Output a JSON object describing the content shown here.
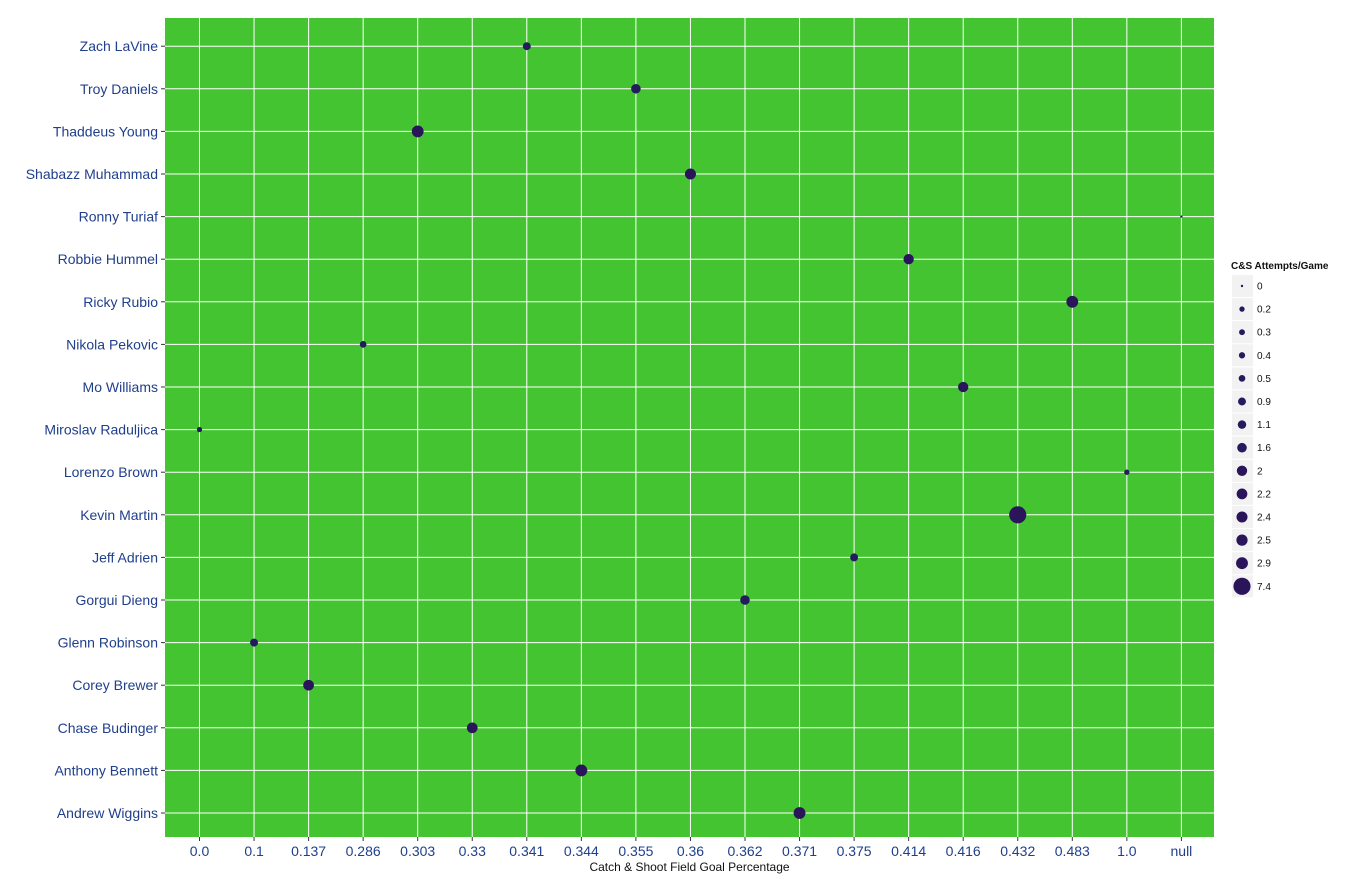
{
  "chart_data": {
    "type": "scatter",
    "xlabel": "Catch & Shoot Field Goal Percentage",
    "ylabel": "",
    "grid": true,
    "x_categories": [
      "0.0",
      "0.1",
      "0.137",
      "0.286",
      "0.303",
      "0.33",
      "0.341",
      "0.344",
      "0.355",
      "0.36",
      "0.362",
      "0.371",
      "0.375",
      "0.414",
      "0.416",
      "0.432",
      "0.483",
      "1.0",
      "null"
    ],
    "y_categories": [
      "Andrew Wiggins",
      "Anthony Bennett",
      "Chase Budinger",
      "Corey Brewer",
      "Glenn Robinson",
      "Gorgui Dieng",
      "Jeff Adrien",
      "Kevin Martin",
      "Lorenzo Brown",
      "Miroslav Raduljica",
      "Mo Williams",
      "Nikola Pekovic",
      "Ricky Rubio",
      "Robbie Hummel",
      "Ronny Turiaf",
      "Shabazz Muhammad",
      "Thaddeus Young",
      "Troy Daniels",
      "Zach LaVine"
    ],
    "points": [
      {
        "player": "Zach LaVine",
        "x": "0.341",
        "size": 0.9
      },
      {
        "player": "Troy Daniels",
        "x": "0.355",
        "size": 1.6
      },
      {
        "player": "Thaddeus Young",
        "x": "0.303",
        "size": 2.9
      },
      {
        "player": "Shabazz Muhammad",
        "x": "0.36",
        "size": 2.4
      },
      {
        "player": "Ronny Turiaf",
        "x": "null",
        "size": 0
      },
      {
        "player": "Robbie Hummel",
        "x": "0.414",
        "size": 2.0
      },
      {
        "player": "Ricky Rubio",
        "x": "0.483",
        "size": 2.9
      },
      {
        "player": "Nikola Pekovic",
        "x": "0.286",
        "size": 0.5
      },
      {
        "player": "Mo Williams",
        "x": "0.416",
        "size": 2.0
      },
      {
        "player": "Miroslav Raduljica",
        "x": "0.0",
        "size": 0.2
      },
      {
        "player": "Lorenzo Brown",
        "x": "1.0",
        "size": 0.2
      },
      {
        "player": "Kevin Martin",
        "x": "0.432",
        "size": 7.4
      },
      {
        "player": "Jeff Adrien",
        "x": "0.375",
        "size": 0.9
      },
      {
        "player": "Gorgui Dieng",
        "x": "0.362",
        "size": 1.6
      },
      {
        "player": "Glenn Robinson",
        "x": "0.1",
        "size": 0.9
      },
      {
        "player": "Corey Brewer",
        "x": "0.137",
        "size": 2.2
      },
      {
        "player": "Chase Budinger",
        "x": "0.33",
        "size": 2.2
      },
      {
        "player": "Anthony Bennett",
        "x": "0.344",
        "size": 2.9
      },
      {
        "player": "Andrew Wiggins",
        "x": "0.371",
        "size": 2.9
      }
    ],
    "legend": {
      "title": "C&S Attempts/Game",
      "placement": "right",
      "values": [
        "0",
        "0.2",
        "0.3",
        "0.4",
        "0.5",
        "0.9",
        "1.1",
        "1.6",
        "2",
        "2.2",
        "2.4",
        "2.5",
        "2.9",
        "7.4"
      ]
    },
    "colors": {
      "panel": "#45c432",
      "gridline": "#ffffff",
      "point_low": "#241a5e",
      "point_high": "#2a145a",
      "legend_key_bg": "#f2f2f2",
      "axis_text": "#1f3f8c"
    }
  }
}
